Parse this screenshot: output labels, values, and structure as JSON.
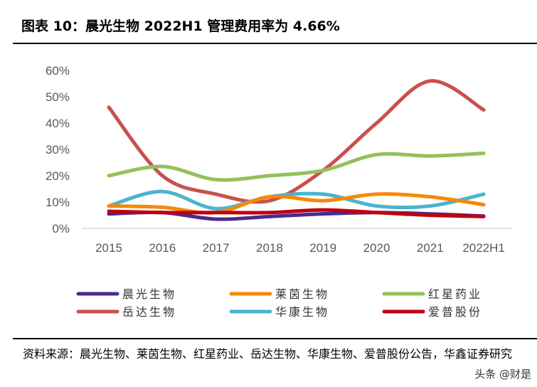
{
  "title": "图表 10：晨光生物 2022H1 管理费用率为 4.66%",
  "source": "资料来源：晨光生物、莱茵生物、红星药业、岳达生物、华康生物、爱普股份公告，华鑫证券研究",
  "watermark": "头条 @财是",
  "chart_data": {
    "type": "line",
    "categories": [
      "2015",
      "2016",
      "2017",
      "2018",
      "2019",
      "2020",
      "2021",
      "2022H1"
    ],
    "ylim": [
      0,
      60
    ],
    "yticks": [
      "0%",
      "10%",
      "20%",
      "30%",
      "40%",
      "50%",
      "60%"
    ],
    "legend_position": "bottom",
    "grid": false,
    "series": [
      {
        "name": "晨光生物",
        "color": "#4B2A8C",
        "values": [
          5.5,
          6,
          3.5,
          4.5,
          5.5,
          6,
          5.5,
          4.66
        ]
      },
      {
        "name": "莱茵生物",
        "color": "#F58A07",
        "values": [
          8.5,
          8,
          6,
          12,
          10.5,
          13,
          12,
          9
        ]
      },
      {
        "name": "红星药业",
        "color": "#93C15A",
        "values": [
          20,
          23.5,
          18.5,
          20,
          22,
          28,
          27.5,
          28.5
        ]
      },
      {
        "name": "岳达生物",
        "color": "#C9504E",
        "values": [
          46,
          20,
          13,
          10.5,
          22,
          40,
          56,
          45
        ]
      },
      {
        "name": "华康生物",
        "color": "#4BB4CE",
        "values": [
          8.5,
          14,
          7.5,
          12,
          13,
          8.5,
          8.5,
          13
        ]
      },
      {
        "name": "爱普股份",
        "color": "#C00010",
        "values": [
          6.5,
          6,
          6,
          6,
          7,
          6,
          5,
          4.5
        ]
      }
    ]
  }
}
